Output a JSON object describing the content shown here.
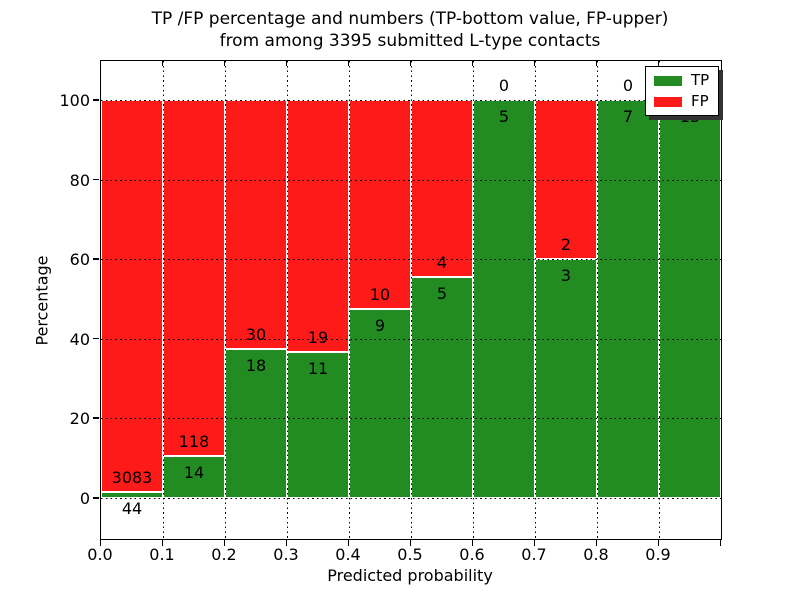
{
  "figure": {
    "title_line1": "TP /FP percentage and numbers (TP-bottom value, FP-upper)",
    "title_line2": "from among 3395 submitted L-type contacts",
    "xlabel": "Predicted probability",
    "ylabel": "Percentage"
  },
  "legend": {
    "items": [
      {
        "label": "TP",
        "color": "#228B22"
      },
      {
        "label": "FP",
        "color": "#FF1A1A"
      }
    ]
  },
  "chart_data": {
    "type": "bar",
    "stacked": true,
    "normalized_to_percent": true,
    "title": "TP /FP percentage and numbers (TP-bottom value, FP-upper) from among 3395 submitted L-type contacts",
    "xlabel": "Predicted probability",
    "ylabel": "Percentage",
    "total_contacts": 3395,
    "bin_start": [
      0.0,
      0.1,
      0.2,
      0.3,
      0.4,
      0.5,
      0.6,
      0.7,
      0.8,
      0.9
    ],
    "bin_width": 0.1,
    "x_ticks": [
      "0.0",
      "0.1",
      "0.2",
      "0.3",
      "0.4",
      "0.5",
      "0.6",
      "0.7",
      "0.8",
      "0.9"
    ],
    "y_ticks": [
      0,
      20,
      40,
      60,
      80,
      100
    ],
    "xlim": [
      0.0,
      1.0
    ],
    "ylim": [
      -10.5,
      110
    ],
    "grid": "dotted black, both axes",
    "legend_position": "upper right",
    "series": [
      {
        "name": "TP",
        "color": "#228B22",
        "counts": [
          44,
          14,
          18,
          11,
          9,
          5,
          5,
          3,
          7,
          13
        ]
      },
      {
        "name": "FP",
        "color": "#FF1A1A",
        "counts": [
          3083,
          118,
          30,
          19,
          10,
          4,
          0,
          2,
          0,
          0
        ]
      }
    ],
    "tp_percent_of_bin": [
      1.41,
      10.61,
      37.5,
      36.67,
      47.37,
      55.56,
      100.0,
      60.0,
      100.0,
      100.0
    ]
  }
}
